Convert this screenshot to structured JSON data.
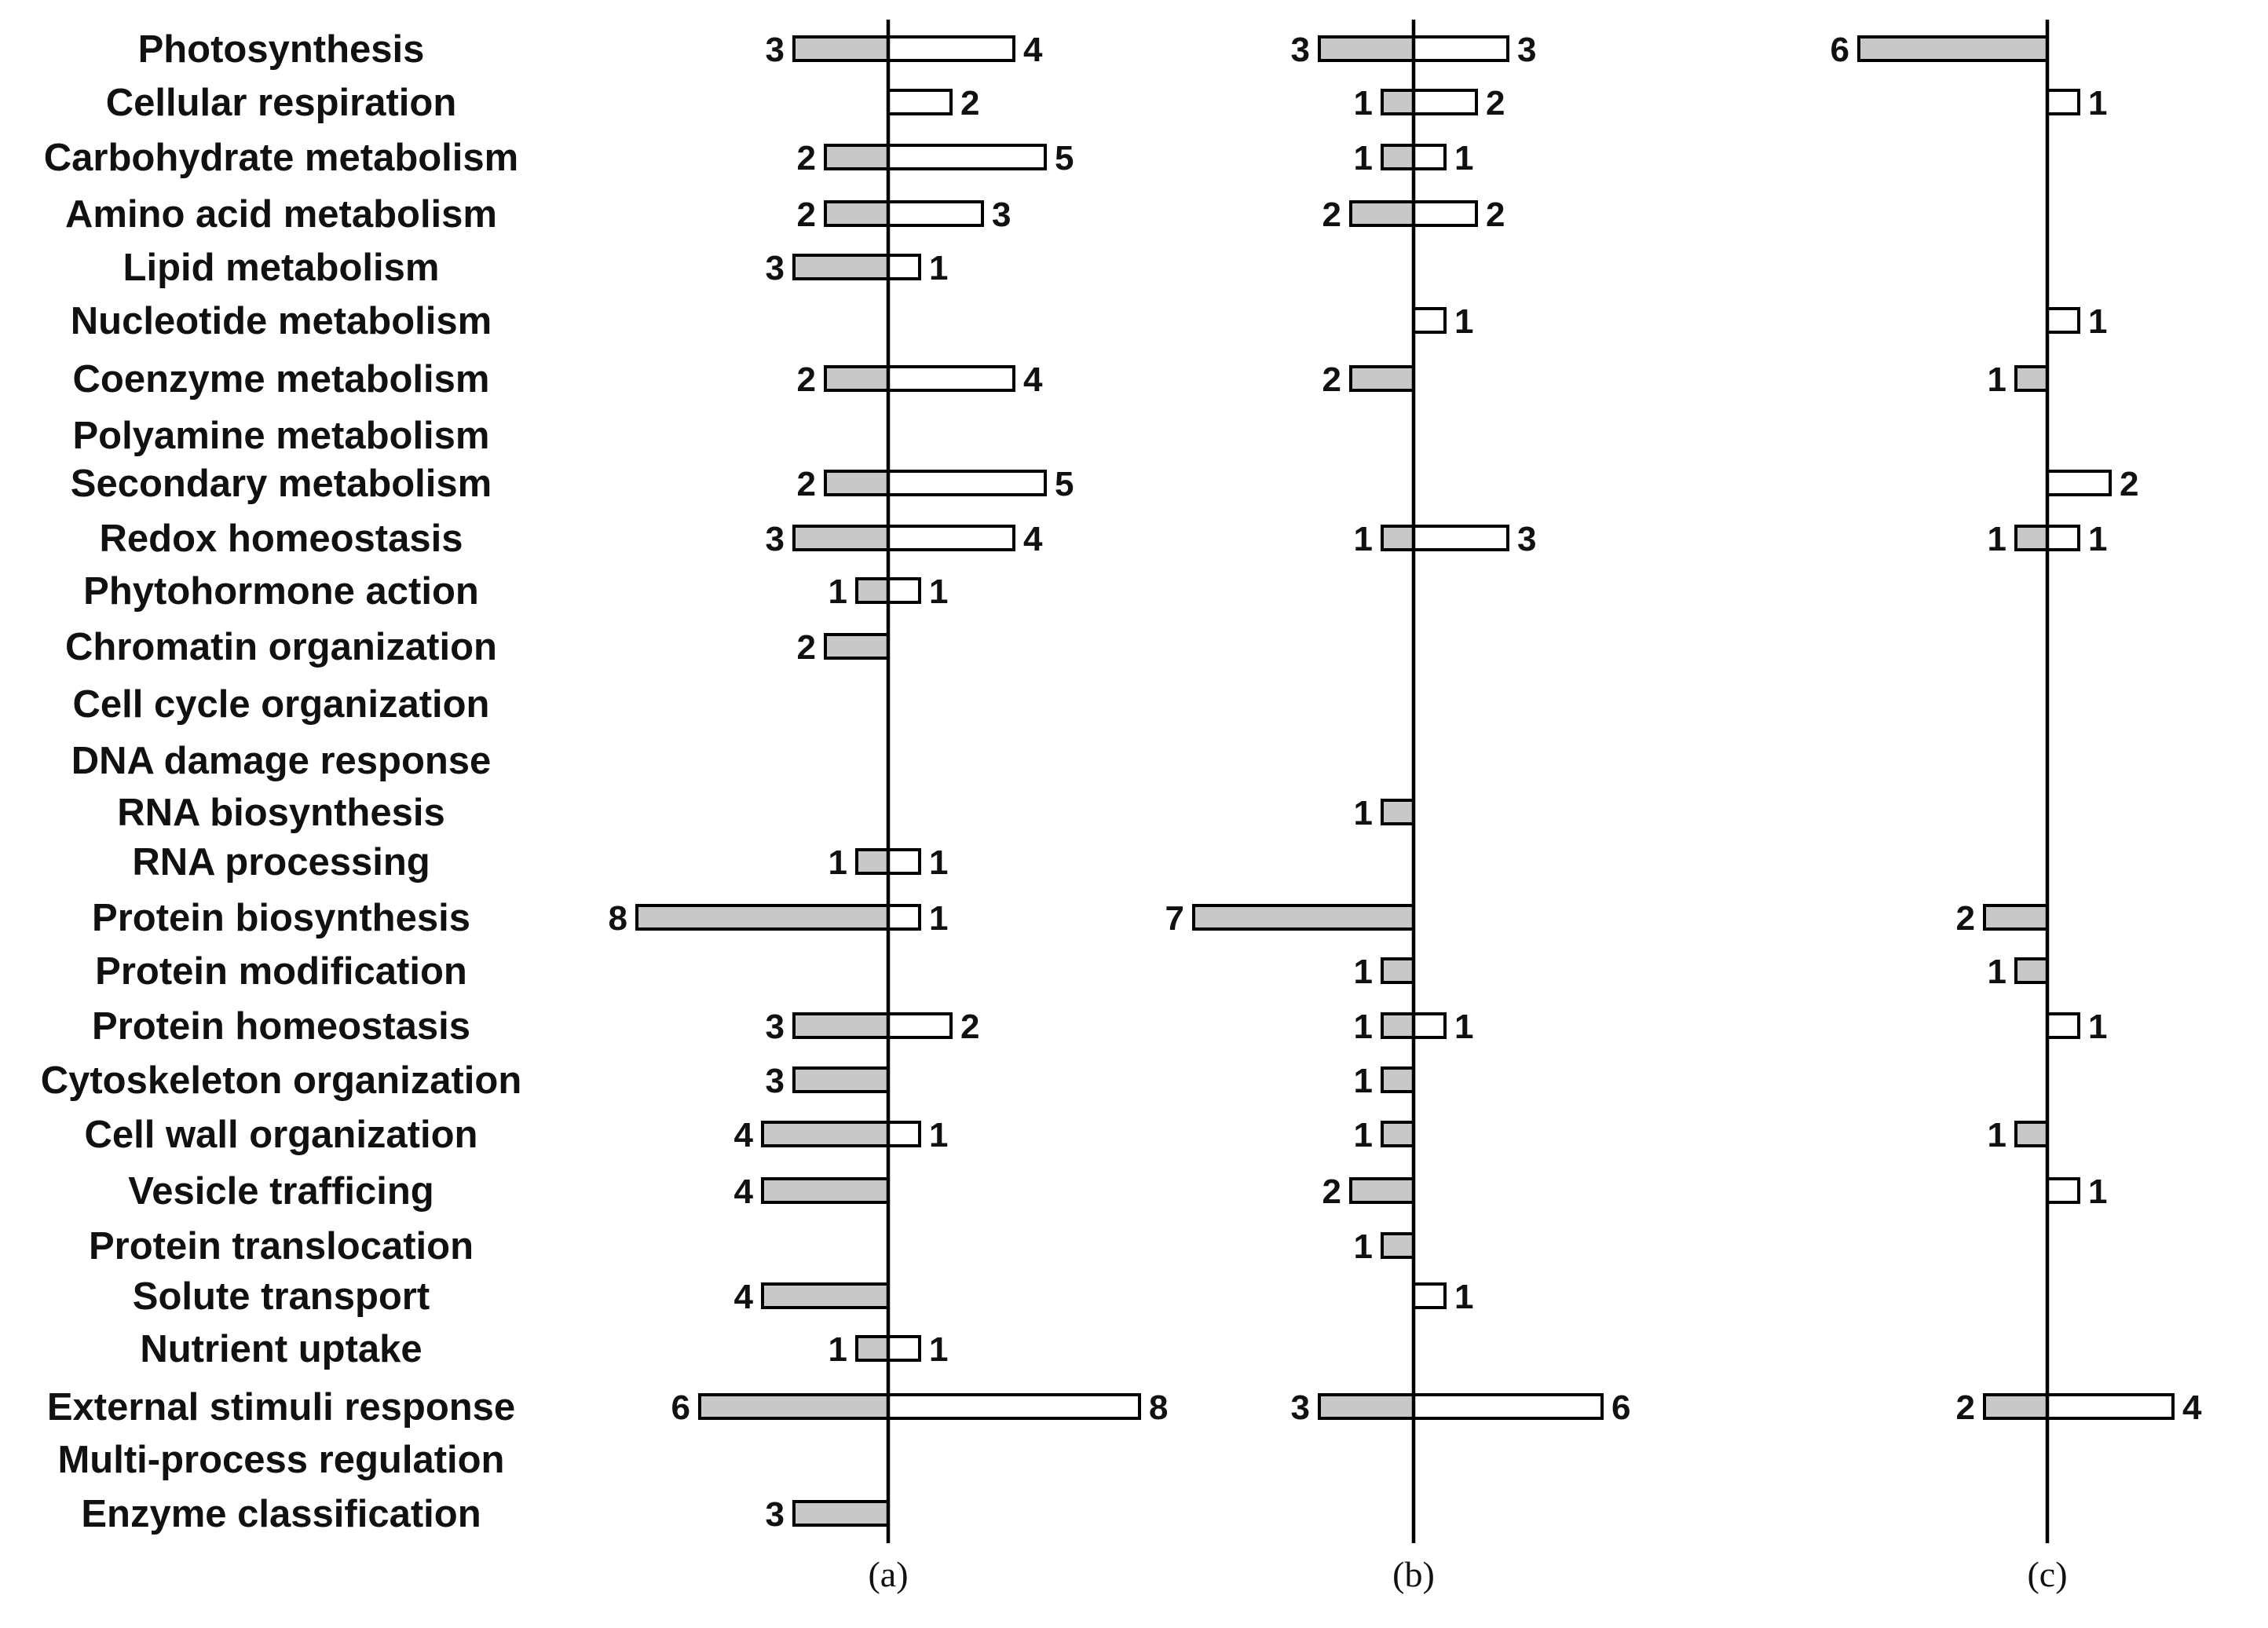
{
  "chart_data": {
    "type": "bar",
    "orientation": "horizontal-diverging",
    "legend": "none",
    "grid": false,
    "categories": [
      "Photosynthesis",
      "Cellular respiration",
      "Carbohydrate metabolism",
      "Amino acid metabolism",
      "Lipid metabolism",
      "Nucleotide metabolism",
      "Coenzyme metabolism",
      "Polyamine metabolism",
      "Secondary metabolism",
      "Redox homeostasis",
      "Phytohormone action",
      "Chromatin organization",
      "Cell cycle organization",
      "DNA damage response",
      "RNA biosynthesis",
      "RNA processing",
      "Protein biosynthesis",
      "Protein modification",
      "Protein homeostasis",
      "Cytoskeleton organization",
      "Cell wall organization",
      "Vesicle trafficing",
      "Protein translocation",
      "Solute transport",
      "Nutrient uptake",
      "External stimuli response",
      "Multi-process regulation",
      "Enzyme classification"
    ],
    "panels": [
      {
        "label": "(a)",
        "down": [
          3,
          null,
          2,
          2,
          3,
          null,
          2,
          null,
          2,
          3,
          1,
          2,
          null,
          null,
          null,
          1,
          8,
          null,
          3,
          3,
          4,
          4,
          null,
          4,
          1,
          6,
          null,
          3
        ],
        "up": [
          4,
          2,
          5,
          3,
          1,
          null,
          4,
          null,
          5,
          4,
          1,
          null,
          null,
          null,
          null,
          1,
          1,
          null,
          2,
          null,
          1,
          null,
          null,
          null,
          1,
          8,
          null,
          null
        ]
      },
      {
        "label": "(b)",
        "down": [
          3,
          1,
          1,
          2,
          null,
          null,
          2,
          null,
          null,
          1,
          null,
          null,
          null,
          null,
          1,
          null,
          7,
          1,
          1,
          1,
          1,
          2,
          1,
          null,
          null,
          3,
          null,
          null
        ],
        "up": [
          3,
          2,
          1,
          2,
          null,
          1,
          null,
          null,
          null,
          3,
          null,
          null,
          null,
          null,
          null,
          null,
          null,
          null,
          1,
          null,
          null,
          null,
          null,
          1,
          null,
          6,
          null,
          null
        ]
      },
      {
        "label": "(c)",
        "down": [
          6,
          null,
          null,
          null,
          null,
          null,
          1,
          null,
          null,
          1,
          null,
          null,
          null,
          null,
          null,
          null,
          2,
          1,
          null,
          null,
          1,
          null,
          null,
          null,
          null,
          2,
          null,
          null
        ],
        "up": [
          null,
          1,
          null,
          null,
          null,
          1,
          null,
          null,
          2,
          1,
          null,
          null,
          null,
          null,
          null,
          null,
          null,
          null,
          1,
          null,
          null,
          1,
          null,
          null,
          null,
          4,
          null,
          null
        ]
      }
    ],
    "colors": {
      "down_fill": "#c8c8c8",
      "up_fill": "#ffffff",
      "outline": "#000000"
    }
  }
}
